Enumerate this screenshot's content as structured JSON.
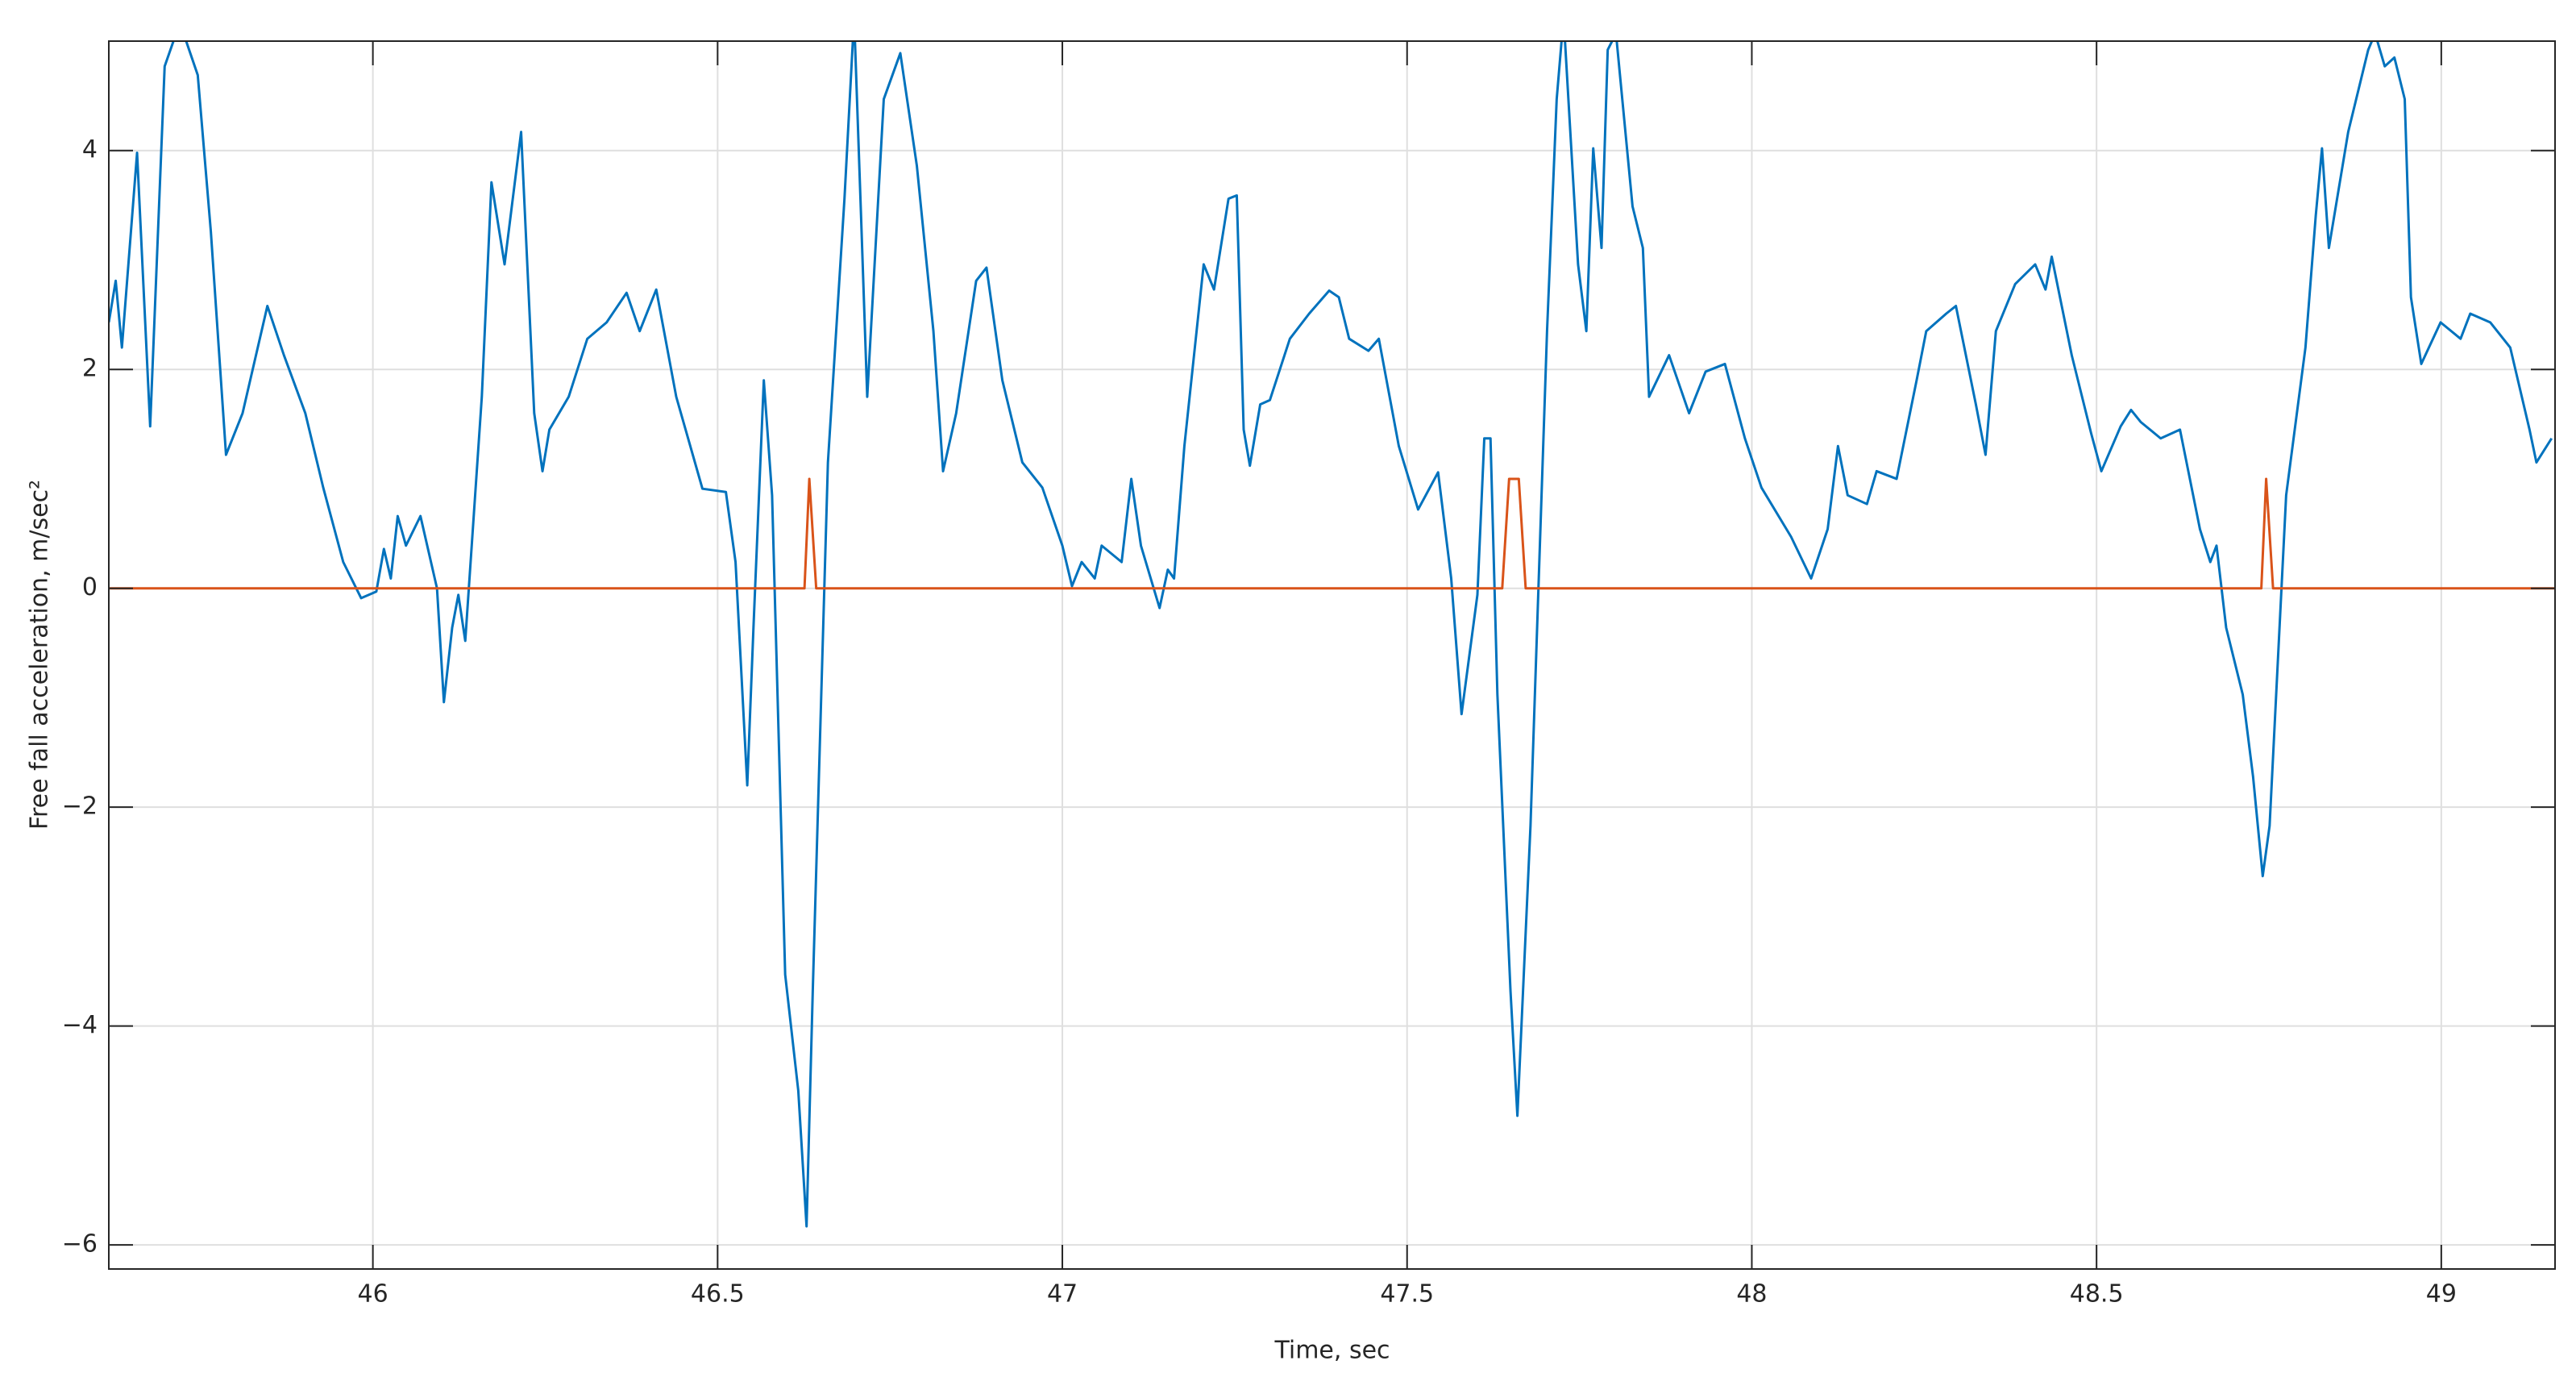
{
  "chart_data": {
    "type": "line",
    "xlabel": "Time, sec",
    "ylabel": "Free fall acceleration, m/sec²",
    "xlim": [
      45.617,
      49.165
    ],
    "ylim": [
      -6.22,
      5
    ],
    "xticks": [
      46,
      46.5,
      47,
      47.5,
      48,
      48.5,
      49
    ],
    "yticks": [
      {
        "value": -6,
        "label": "−6"
      },
      {
        "value": -4,
        "label": "−4"
      },
      {
        "value": -2,
        "label": "−2"
      },
      0,
      2,
      4
    ],
    "grid": true,
    "series": [
      {
        "color": "#0072bd",
        "x": [
          45.617,
          45.627,
          45.636,
          45.658,
          45.677,
          45.698,
          45.713,
          45.727,
          45.746,
          45.765,
          45.787,
          45.811,
          45.847,
          45.871,
          45.902,
          45.928,
          45.957,
          45.983,
          46.005,
          46.016,
          46.026,
          46.036,
          46.048,
          46.069,
          46.093,
          46.103,
          46.115,
          46.124,
          46.134,
          46.158,
          46.172,
          46.191,
          46.215,
          46.234,
          46.246,
          46.256,
          46.284,
          46.311,
          46.339,
          46.368,
          46.387,
          46.411,
          46.44,
          46.478,
          46.512,
          46.526,
          46.543,
          46.552,
          46.567,
          46.579,
          46.598,
          46.617,
          46.629,
          46.638,
          46.66,
          46.684,
          46.698,
          46.708,
          46.717,
          46.741,
          46.765,
          46.789,
          46.813,
          46.827,
          46.846,
          46.875,
          46.89,
          46.913,
          46.942,
          46.971,
          47.0,
          47.014,
          47.028,
          47.047,
          47.057,
          47.086,
          47.1,
          47.114,
          47.141,
          47.153,
          47.162,
          47.177,
          47.205,
          47.22,
          47.241,
          47.253,
          47.263,
          47.272,
          47.287,
          47.301,
          47.33,
          47.358,
          47.387,
          47.401,
          47.416,
          47.444,
          47.459,
          47.488,
          47.516,
          47.545,
          47.564,
          47.579,
          47.602,
          47.612,
          47.621,
          47.631,
          47.65,
          47.66,
          47.679,
          47.703,
          47.717,
          47.727,
          47.748,
          47.76,
          47.77,
          47.782,
          47.791,
          47.803,
          47.827,
          47.842,
          47.851,
          47.88,
          47.909,
          47.933,
          47.961,
          47.99,
          48.014,
          48.057,
          48.086,
          48.11,
          48.125,
          48.139,
          48.167,
          48.181,
          48.21,
          48.239,
          48.253,
          48.282,
          48.296,
          48.325,
          48.339,
          48.354,
          48.382,
          48.411,
          48.426,
          48.435,
          48.464,
          48.492,
          48.507,
          48.535,
          48.55,
          48.564,
          48.593,
          48.621,
          48.65,
          48.665,
          48.674,
          48.688,
          48.712,
          48.727,
          48.741,
          48.751,
          48.775,
          48.803,
          48.818,
          48.827,
          48.837,
          48.865,
          48.894,
          48.904,
          48.918,
          48.932,
          48.947,
          48.956,
          48.971,
          48.999,
          49.028,
          49.042,
          49.071,
          49.1,
          49.128,
          49.138,
          49.16
        ],
        "values": [
          2.43,
          2.81,
          2.2,
          3.98,
          1.48,
          4.77,
          5.04,
          5.04,
          4.69,
          3.26,
          1.22,
          1.6,
          2.58,
          2.13,
          1.6,
          0.92,
          0.24,
          -0.09,
          -0.03,
          0.36,
          0.09,
          0.66,
          0.39,
          0.66,
          0.0,
          -1.04,
          -0.36,
          -0.06,
          -0.48,
          1.75,
          3.71,
          2.96,
          4.17,
          1.6,
          1.07,
          1.45,
          1.75,
          2.28,
          2.43,
          2.7,
          2.35,
          2.73,
          1.75,
          0.91,
          0.88,
          0.24,
          -1.8,
          -0.36,
          1.9,
          0.85,
          -3.53,
          -4.59,
          -5.83,
          -3.68,
          1.15,
          3.56,
          5.22,
          3.41,
          1.75,
          4.47,
          4.89,
          3.86,
          2.35,
          1.07,
          1.6,
          2.81,
          2.93,
          1.9,
          1.15,
          0.92,
          0.39,
          0.02,
          0.24,
          0.09,
          0.39,
          0.24,
          1.0,
          0.39,
          -0.18,
          0.17,
          0.09,
          1.3,
          2.96,
          2.73,
          3.56,
          3.59,
          1.45,
          1.12,
          1.68,
          1.72,
          2.28,
          2.51,
          2.72,
          2.66,
          2.28,
          2.17,
          2.28,
          1.3,
          0.72,
          1.06,
          0.09,
          -1.15,
          -0.06,
          1.37,
          1.37,
          -0.97,
          -3.68,
          -4.82,
          -2.17,
          2.35,
          4.47,
          5.22,
          2.96,
          2.35,
          4.02,
          3.11,
          4.92,
          5.07,
          3.49,
          3.11,
          1.75,
          2.13,
          1.6,
          1.98,
          2.05,
          1.37,
          0.92,
          0.47,
          0.09,
          0.54,
          1.3,
          0.85,
          0.77,
          1.07,
          1.0,
          1.9,
          2.35,
          2.51,
          2.58,
          1.68,
          1.22,
          2.35,
          2.78,
          2.96,
          2.73,
          3.03,
          2.13,
          1.42,
          1.07,
          1.48,
          1.63,
          1.52,
          1.37,
          1.45,
          0.54,
          0.24,
          0.39,
          -0.36,
          -0.97,
          -1.72,
          -2.63,
          -2.17,
          0.85,
          2.2,
          3.41,
          4.02,
          3.11,
          4.17,
          4.92,
          5.07,
          4.77,
          4.85,
          4.47,
          2.66,
          2.05,
          2.43,
          2.28,
          2.51,
          2.43,
          2.2,
          1.45,
          1.15,
          1.37
        ]
      },
      {
        "color": "#d95319",
        "x": [
          45.617,
          46.626,
          46.633,
          46.643,
          47.638,
          47.648,
          47.662,
          47.672,
          48.739,
          48.746,
          48.756,
          49.165
        ],
        "values": [
          0,
          0,
          1,
          0,
          0,
          1,
          1,
          0,
          0,
          1,
          0,
          0
        ]
      }
    ]
  }
}
